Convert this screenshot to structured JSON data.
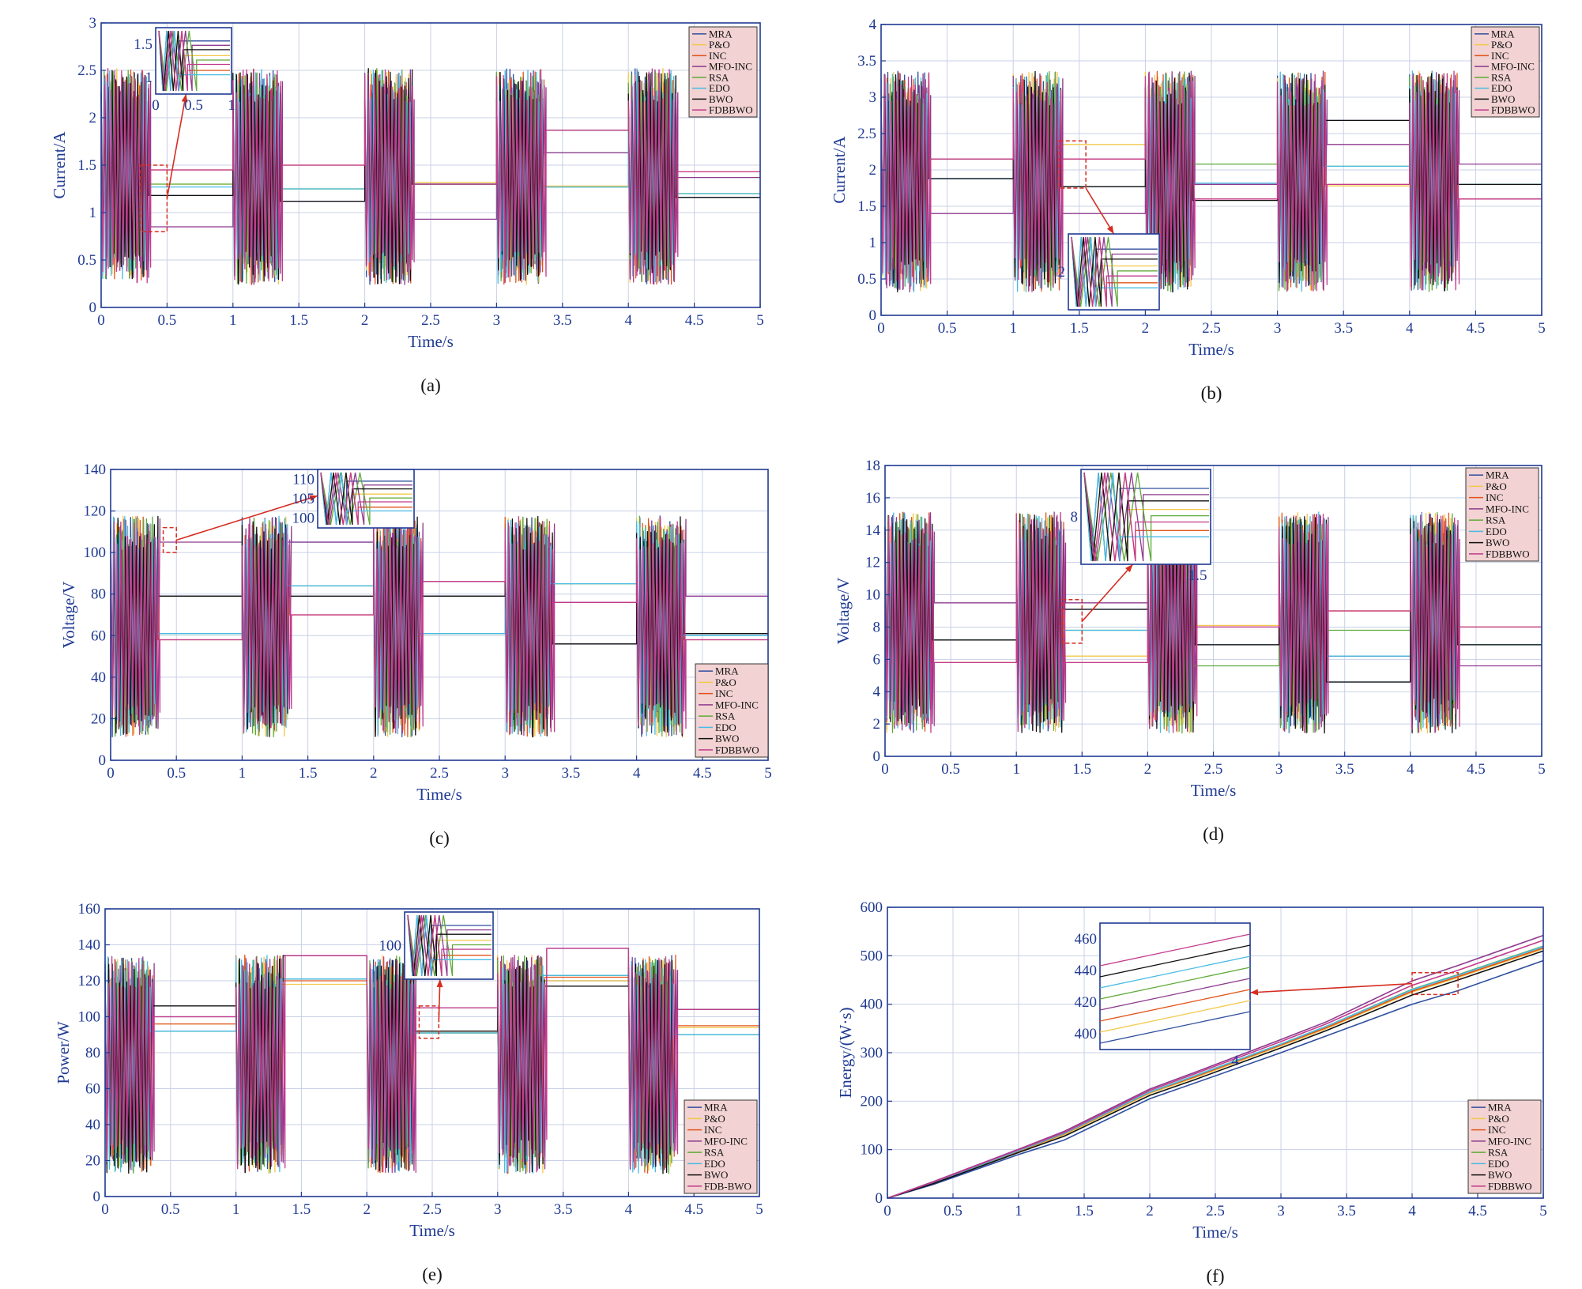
{
  "colors": {
    "MRA": "#2f4f9e",
    "P&O": "#f2c94c",
    "INC": "#e2541b",
    "MFO-INC": "#8e3b8e",
    "RSA": "#5faa3a",
    "EDO": "#49bbe3",
    "BWO": "#111111",
    "FDBBWO": "#c23b8c",
    "axis": "#1f3a93",
    "grid": "#c8d0e6",
    "legend_bg": "#f2d2d2",
    "annotation": "#d62d20"
  },
  "chart_data": [
    {
      "panel": "(a)",
      "type": "line",
      "xlabel": "Time/s",
      "ylabel": "Current/A",
      "xlim": [
        0,
        5
      ],
      "ylim": [
        0,
        3
      ],
      "xticks": [
        "0",
        "0.5",
        "1",
        "1.5",
        "2",
        "2.5",
        "3",
        "3.5",
        "4",
        "4.5",
        "5"
      ],
      "yticks": [
        "0",
        "0.5",
        "1",
        "1.5",
        "2",
        "2.5",
        "3"
      ],
      "grid": true,
      "legend": "top-right",
      "legend_entries": [
        "MRA",
        "P&O",
        "INC",
        "MFO-INC",
        "RSA",
        "EDO",
        "BWO",
        "FDBBWO"
      ],
      "steady_values": {
        "MRA": [
          1.18,
          1.12,
          1.3,
          1.63,
          1.16
        ],
        "P&O": [
          1.3,
          1.25,
          1.32,
          1.28,
          1.2
        ],
        "INC": [
          1.45,
          1.5,
          1.3,
          1.87,
          1.43
        ],
        "MFO-INC": [
          0.85,
          1.12,
          0.93,
          1.63,
          1.37
        ],
        "RSA": [
          1.3,
          1.25,
          1.3,
          1.27,
          1.2
        ],
        "EDO": [
          1.27,
          1.25,
          1.3,
          1.27,
          1.2
        ],
        "BWO": [
          1.18,
          1.12,
          1.3,
          1.87,
          1.16
        ],
        "FDBBWO": [
          1.45,
          1.5,
          1.3,
          1.87,
          1.43
        ]
      },
      "inset": {
        "xticks": [
          "0",
          "0.5",
          "1"
        ],
        "yticks": [
          "1",
          "1.5"
        ]
      }
    },
    {
      "panel": "(b)",
      "type": "line",
      "xlabel": "Time/s",
      "ylabel": "Current/A",
      "xlim": [
        0,
        5
      ],
      "ylim": [
        0,
        4
      ],
      "xticks": [
        "0",
        "0.5",
        "1",
        "1.5",
        "2",
        "2.5",
        "3",
        "3.5",
        "4",
        "4.5",
        "5"
      ],
      "yticks": [
        "0",
        "0.5",
        "1",
        "1.5",
        "2",
        "2.5",
        "3",
        "3.5",
        "4"
      ],
      "grid": true,
      "legend": "top-right",
      "legend_entries": [
        "MRA",
        "P&O",
        "INC",
        "MFO-INC",
        "RSA",
        "EDO",
        "BWO",
        "FDBBWO"
      ],
      "steady_values": {
        "MRA": [
          1.88,
          1.77,
          1.82,
          2.68,
          1.8
        ],
        "P&O": [
          2.15,
          2.35,
          1.6,
          1.78,
          1.6
        ],
        "INC": [
          2.15,
          2.15,
          1.6,
          1.8,
          1.6
        ],
        "MFO-INC": [
          1.4,
          1.4,
          1.8,
          2.35,
          2.08
        ],
        "RSA": [
          2.15,
          1.77,
          2.08,
          2.05,
          1.8
        ],
        "EDO": [
          1.88,
          1.77,
          1.82,
          2.05,
          1.8
        ],
        "BWO": [
          1.88,
          1.77,
          1.58,
          2.68,
          1.8
        ],
        "FDBBWO": [
          2.15,
          2.15,
          1.6,
          1.8,
          1.6
        ]
      },
      "inset": {
        "yticks": [
          "2"
        ]
      }
    },
    {
      "panel": "(c)",
      "type": "line",
      "xlabel": "Time/s",
      "ylabel": "Voltage/V",
      "xlim": [
        0,
        5
      ],
      "ylim": [
        0,
        140
      ],
      "xticks": [
        "0",
        "0.5",
        "1",
        "1.5",
        "2",
        "2.5",
        "3",
        "3.5",
        "4",
        "4.5",
        "5"
      ],
      "yticks": [
        "0",
        "20",
        "40",
        "60",
        "80",
        "100",
        "120",
        "140"
      ],
      "grid": true,
      "legend": "bottom-right",
      "legend_entries": [
        "MRA",
        "P&O",
        "INC",
        "MFO-INC",
        "RSA",
        "EDO",
        "BWO",
        "FDBBWO"
      ],
      "steady_values": {
        "MRA": [
          79,
          105,
          79,
          56,
          61
        ],
        "P&O": [
          61,
          84,
          61,
          85,
          60
        ],
        "INC": [
          58,
          70,
          86,
          76,
          58
        ],
        "MFO-INC": [
          105,
          105,
          86,
          76,
          79
        ],
        "RSA": [
          61,
          84,
          61,
          85,
          60
        ],
        "EDO": [
          61,
          84,
          61,
          85,
          60
        ],
        "BWO": [
          79,
          79,
          79,
          56,
          61
        ],
        "FDBBWO": [
          58,
          70,
          86,
          76,
          58
        ]
      },
      "inset": {
        "yticks": [
          "100",
          "105",
          "110"
        ]
      }
    },
    {
      "panel": "(d)",
      "type": "line",
      "xlabel": "Time/s",
      "ylabel": "Voltage/V",
      "xlim": [
        0,
        5
      ],
      "ylim": [
        0,
        18
      ],
      "xticks": [
        "0",
        "0.5",
        "1",
        "1.5",
        "2",
        "2.5",
        "3",
        "3.5",
        "4",
        "4.5",
        "5"
      ],
      "yticks": [
        "0",
        "2",
        "4",
        "6",
        "8",
        "10",
        "12",
        "14",
        "16",
        "18"
      ],
      "grid": true,
      "legend": "top-right",
      "legend_entries": [
        "MRA",
        "P&O",
        "INC",
        "MFO-INC",
        "RSA",
        "EDO",
        "BWO",
        "FDBBWO"
      ],
      "steady_values": {
        "MRA": [
          7.2,
          9.1,
          6.9,
          4.6,
          6.9
        ],
        "P&O": [
          5.8,
          6.2,
          8.1,
          9.0,
          8.0
        ],
        "INC": [
          5.8,
          5.8,
          8.0,
          9.0,
          8.0
        ],
        "MFO-INC": [
          9.5,
          9.5,
          6.9,
          6.2,
          5.6
        ],
        "RSA": [
          7.2,
          7.8,
          5.6,
          7.8,
          6.9
        ],
        "EDO": [
          7.2,
          7.8,
          6.9,
          6.2,
          6.9
        ],
        "BWO": [
          7.2,
          9.1,
          6.9,
          4.6,
          6.9
        ],
        "FDBBWO": [
          5.8,
          5.8,
          8.0,
          9.0,
          8.0
        ]
      },
      "inset": {
        "xticks": [
          "1.5"
        ],
        "yticks": [
          "8"
        ]
      }
    },
    {
      "panel": "(e)",
      "type": "line",
      "xlabel": "Time/s",
      "ylabel": "Power/W",
      "xlim": [
        0,
        5
      ],
      "ylim": [
        0,
        160
      ],
      "xticks": [
        "0",
        "0.5",
        "1",
        "1.5",
        "2",
        "2.5",
        "3",
        "3.5",
        "4",
        "4.5",
        "5"
      ],
      "yticks": [
        "0",
        "20",
        "40",
        "60",
        "80",
        "100",
        "120",
        "140",
        "160"
      ],
      "grid": true,
      "legend": "bottom-right",
      "legend_entries": [
        "MRA",
        "P&O",
        "INC",
        "MFO-INC",
        "RSA",
        "EDO",
        "BWO",
        "FDB-BWO"
      ],
      "steady_values": {
        "MRA": [
          92,
          121,
          91,
          120,
          90
        ],
        "P&O": [
          96,
          118,
          91,
          120,
          94
        ],
        "INC": [
          96,
          120,
          92,
          122,
          95
        ],
        "MFO-INC": [
          100,
          134,
          105,
          138,
          104
        ],
        "RSA": [
          92,
          121,
          91,
          123,
          90
        ],
        "EDO": [
          92,
          121,
          91,
          123,
          90
        ],
        "BWO": [
          106,
          134,
          92,
          117,
          104
        ],
        "FDB-BWO": [
          100,
          134,
          105,
          138,
          104
        ]
      },
      "inset": {
        "yticks": [
          "100"
        ]
      }
    },
    {
      "panel": "(f)",
      "type": "line",
      "xlabel": "Time/s",
      "ylabel": "Energy/(W·s)",
      "xlim": [
        0,
        5
      ],
      "ylim": [
        0,
        600
      ],
      "xticks": [
        "0",
        "0.5",
        "1",
        "1.5",
        "2",
        "2.5",
        "3",
        "3.5",
        "4",
        "4.5",
        "5"
      ],
      "yticks": [
        "0",
        "100",
        "200",
        "300",
        "400",
        "500",
        "600"
      ],
      "grid": true,
      "legend": "bottom-right",
      "legend_entries": [
        "MRA",
        "P&O",
        "INC",
        "MFO-INC",
        "RSA",
        "EDO",
        "BWO",
        "FDBBWO"
      ],
      "x": [
        0,
        0.35,
        1,
        1.35,
        2,
        2.35,
        3,
        3.35,
        4,
        4.35,
        5
      ],
      "series": [
        {
          "name": "MRA",
          "values": [
            0,
            28,
            90,
            120,
            205,
            238,
            300,
            335,
            400,
            428,
            490
          ]
        },
        {
          "name": "P&O",
          "values": [
            0,
            31,
            96,
            131,
            216,
            249,
            314,
            350,
            425,
            455,
            514
          ]
        },
        {
          "name": "INC",
          "values": [
            0,
            32,
            97,
            133,
            218,
            251,
            316,
            352,
            427,
            457,
            516
          ]
        },
        {
          "name": "MFO-INC",
          "values": [
            0,
            34,
            101,
            138,
            225,
            260,
            327,
            364,
            448,
            480,
            542
          ]
        },
        {
          "name": "RSA",
          "values": [
            0,
            32,
            98,
            134,
            219,
            253,
            318,
            355,
            431,
            461,
            520
          ]
        },
        {
          "name": "EDO",
          "values": [
            0,
            32,
            98,
            134,
            219,
            253,
            318,
            355,
            430,
            460,
            519
          ]
        },
        {
          "name": "BWO",
          "values": [
            0,
            30,
            94,
            128,
            212,
            245,
            310,
            346,
            419,
            450,
            510
          ]
        },
        {
          "name": "FDBBWO",
          "values": [
            0,
            33,
            100,
            136,
            222,
            257,
            323,
            360,
            439,
            470,
            532
          ]
        }
      ],
      "inset": {
        "xticks": [
          "4"
        ],
        "yticks": [
          "400",
          "420",
          "440",
          "460"
        ]
      }
    }
  ]
}
